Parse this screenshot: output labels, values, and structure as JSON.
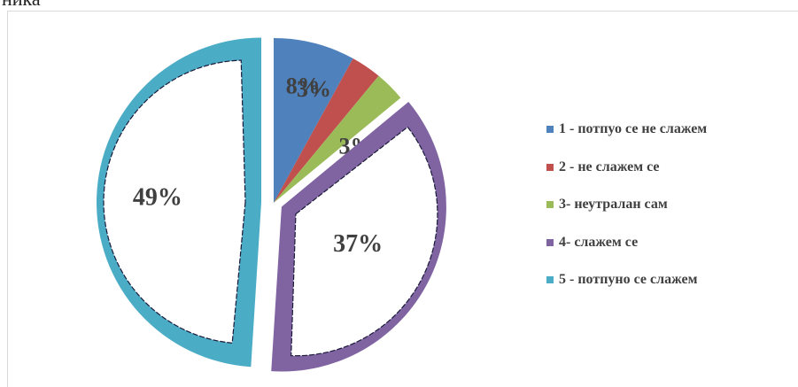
{
  "page": {
    "top_fragment": "ника"
  },
  "chart_data": {
    "type": "pie",
    "legend_position": "right",
    "series": [
      {
        "name": "1 - потпуо се не слажем",
        "value": 8,
        "label": "8%",
        "color": "#4f81bd"
      },
      {
        "name": "2 - не слажем се",
        "value": 3,
        "label": "3%",
        "color": "#c0504d"
      },
      {
        "name": "3- неутралан сам",
        "value": 3,
        "label": "3%",
        "color": "#9bbb59"
      },
      {
        "name": "4- слажем се",
        "value": 37,
        "label": "37%",
        "color": "#8064a2"
      },
      {
        "name": "5 - потпуно се слажем",
        "value": 49,
        "label": "49%",
        "color": "#4bacc6"
      }
    ]
  }
}
